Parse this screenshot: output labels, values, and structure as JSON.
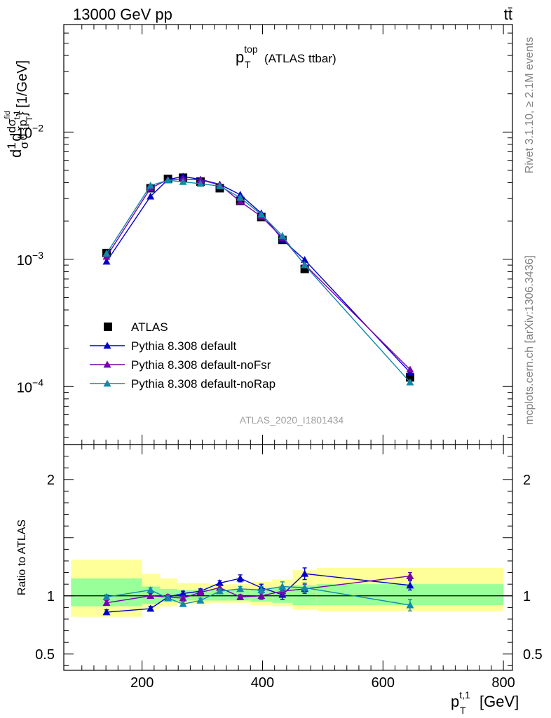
{
  "header": {
    "energy_label": "13000 GeV pp",
    "process_label": "tt̄"
  },
  "main_title": {
    "base": "p",
    "sup": "top",
    "sub": "T",
    "rest": "(ATLAS ttbar)"
  },
  "watermark": "ATLAS_2020_I1801434",
  "side_labels": {
    "rivet": "Rivet 3.1.10, ≥ 2.1M events",
    "mcplots": "mcplots.cern.ch [arXiv:1306.3436]"
  },
  "colors": {
    "data": "#000000",
    "default": "#0000cc",
    "noFsr": "#7700aa",
    "noRap": "#1188aa",
    "band_inner": "#99ff99",
    "band_outer": "#ffff99"
  },
  "chart_data": [
    {
      "type": "line",
      "panel": "main",
      "title": "p_T^top (ATLAS ttbar)",
      "ylabel": "1/σ dσ^fid / d{p_T^t,1} [1/GeV]",
      "ylabel_parts": {
        "a": "d",
        "b": "1",
        "c": "σ",
        "d": "dσ",
        "e": "fid",
        "f": "d {p",
        "g": "t,1",
        "h": "T",
        "i": "} [1/GeV]"
      },
      "xlim": [
        70,
        815
      ],
      "ylim": [
        3.5e-05,
        0.07
      ],
      "yscale": "log",
      "y_ticks": [
        {
          "value": 0.01,
          "base": "10",
          "exp": "−2"
        },
        {
          "value": 0.001,
          "base": "10",
          "exp": "−3"
        },
        {
          "value": 0.0001,
          "base": "10",
          "exp": "−4"
        }
      ],
      "x": [
        141,
        214,
        243,
        268,
        297,
        329,
        363,
        398,
        433,
        470,
        645
      ],
      "series": [
        {
          "name": "ATLAS",
          "marker": "square",
          "values": [
            0.00112,
            0.00362,
            0.00428,
            0.00438,
            0.00408,
            0.00362,
            0.00288,
            0.00215,
            0.00142,
            0.00084,
            0.000118
          ]
        },
        {
          "name": "Pythia 8.308 default",
          "marker": "triangle",
          "values": [
            0.00096,
            0.00312,
            0.00423,
            0.00448,
            0.00424,
            0.00388,
            0.00322,
            0.0023,
            0.00143,
            0.00099,
            0.000129
          ]
        },
        {
          "name": "Pythia 8.308 default-noFsr",
          "marker": "triangle",
          "values": [
            0.00105,
            0.00362,
            0.00423,
            0.00428,
            0.0042,
            0.00385,
            0.00285,
            0.00217,
            0.00148,
            0.00091,
            0.000136
          ]
        },
        {
          "name": "Pythia 8.308 default-noRap",
          "marker": "triangle",
          "values": [
            0.00111,
            0.0038,
            0.00418,
            0.00406,
            0.00393,
            0.00376,
            0.00305,
            0.00225,
            0.00153,
            0.0009,
            0.000108
          ]
        }
      ]
    },
    {
      "type": "line",
      "panel": "ratio",
      "xlabel": "p_T^t,1 [GeV]",
      "xlabel_parts": {
        "base": "p",
        "sup": "t,1",
        "sub": "T",
        "unit": "[GeV]"
      },
      "ylabel": "Ratio to ATLAS",
      "xlim": [
        70,
        815
      ],
      "ylim": [
        0.36,
        2.3
      ],
      "x_ticks": [
        200,
        400,
        600,
        800
      ],
      "y_ticks": [
        {
          "value": 2,
          "label": "2"
        },
        {
          "value": 1,
          "label": "1"
        },
        {
          "value": 0.5,
          "label": "0.5"
        }
      ],
      "x": [
        141,
        214,
        243,
        268,
        297,
        329,
        363,
        398,
        433,
        470,
        645
      ],
      "bins": [
        {
          "lo": 82,
          "hi": 200,
          "inner": [
            0.91,
            1.15
          ],
          "outer": [
            0.82,
            1.31
          ]
        },
        {
          "lo": 200,
          "hi": 230,
          "inner": [
            0.93,
            1.08
          ],
          "outer": [
            0.89,
            1.19
          ]
        },
        {
          "lo": 230,
          "hi": 258,
          "inner": [
            0.95,
            1.06
          ],
          "outer": [
            0.91,
            1.15
          ]
        },
        {
          "lo": 258,
          "hi": 282,
          "inner": [
            0.96,
            1.05
          ],
          "outer": [
            0.93,
            1.11
          ]
        },
        {
          "lo": 282,
          "hi": 312,
          "inner": [
            0.96,
            1.05
          ],
          "outer": [
            0.93,
            1.11
          ]
        },
        {
          "lo": 312,
          "hi": 346,
          "inner": [
            0.96,
            1.05
          ],
          "outer": [
            0.94,
            1.1
          ]
        },
        {
          "lo": 346,
          "hi": 380,
          "inner": [
            0.96,
            1.05
          ],
          "outer": [
            0.94,
            1.1
          ]
        },
        {
          "lo": 380,
          "hi": 416,
          "inner": [
            0.95,
            1.06
          ],
          "outer": [
            0.92,
            1.12
          ]
        },
        {
          "lo": 416,
          "hi": 450,
          "inner": [
            0.94,
            1.07
          ],
          "outer": [
            0.91,
            1.14
          ]
        },
        {
          "lo": 450,
          "hi": 490,
          "inner": [
            0.92,
            1.09
          ],
          "outer": [
            0.88,
            1.22
          ]
        },
        {
          "lo": 490,
          "hi": 800,
          "inner": [
            0.92,
            1.1
          ],
          "outer": [
            0.87,
            1.24
          ]
        }
      ],
      "series": [
        {
          "name": "Pythia 8.308 default",
          "values": [
            0.86,
            0.89,
            0.99,
            1.02,
            1.04,
            1.11,
            1.15,
            1.07,
            1.01,
            1.19,
            1.09
          ],
          "errors": [
            0.02,
            0.02,
            0.02,
            0.02,
            0.02,
            0.02,
            0.03,
            0.03,
            0.04,
            0.05,
            0.04
          ]
        },
        {
          "name": "Pythia 8.308 default-noFsr",
          "values": [
            0.94,
            1.0,
            0.99,
            0.98,
            1.03,
            1.07,
            0.99,
            1.0,
            1.04,
            1.06,
            1.17
          ],
          "errors": [
            0.02,
            0.02,
            0.02,
            0.02,
            0.02,
            0.02,
            0.02,
            0.03,
            0.04,
            0.04,
            0.03
          ]
        },
        {
          "name": "Pythia 8.308 default-noRap",
          "values": [
            0.99,
            1.05,
            0.98,
            0.93,
            0.96,
            1.04,
            1.06,
            1.05,
            1.08,
            1.07,
            0.92
          ],
          "errors": [
            0.02,
            0.02,
            0.02,
            0.02,
            0.02,
            0.02,
            0.02,
            0.03,
            0.04,
            0.04,
            0.05
          ]
        }
      ]
    }
  ]
}
